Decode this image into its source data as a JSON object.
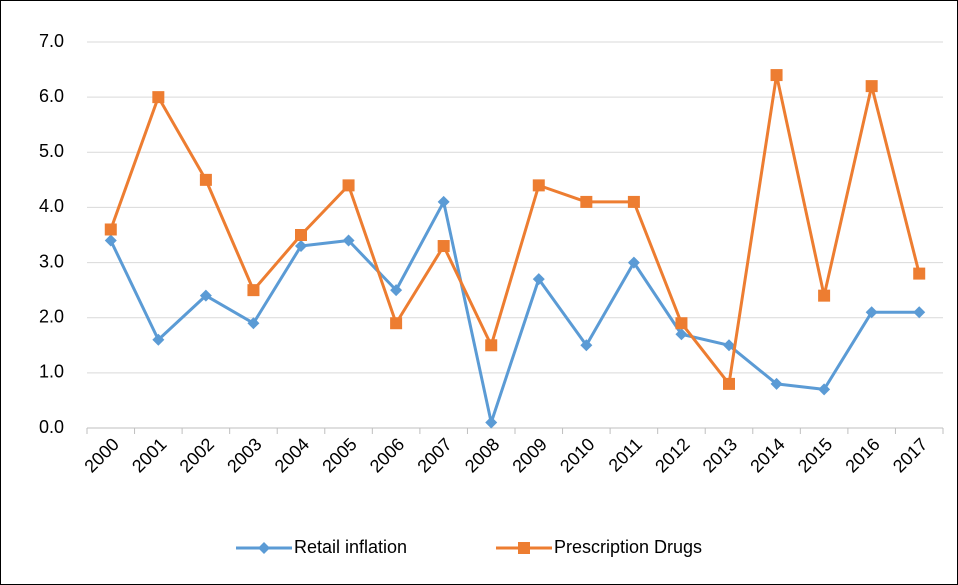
{
  "chart_data": {
    "type": "line",
    "categories": [
      "2000",
      "2001",
      "2002",
      "2003",
      "2004",
      "2005",
      "2006",
      "2007",
      "2008",
      "2009",
      "2010",
      "2011",
      "2012",
      "2013",
      "2014",
      "2015",
      "2016",
      "2017"
    ],
    "series": [
      {
        "name": "Retail inflation",
        "color": "#5b9bd5",
        "marker": "diamond",
        "values": [
          3.4,
          1.6,
          2.4,
          1.9,
          3.3,
          3.4,
          2.5,
          4.1,
          0.1,
          2.7,
          1.5,
          3.0,
          1.7,
          1.5,
          0.8,
          0.7,
          2.1,
          2.1
        ]
      },
      {
        "name": "Prescription Drugs",
        "color": "#ed7d31",
        "marker": "square",
        "values": [
          3.6,
          6.0,
          4.5,
          2.5,
          3.5,
          4.4,
          1.9,
          3.3,
          1.5,
          4.4,
          4.1,
          4.1,
          1.9,
          0.8,
          6.4,
          2.4,
          6.2,
          2.8
        ]
      }
    ],
    "ylim": [
      0,
      7
    ],
    "yticks": [
      {
        "value": 0,
        "label": "0.0"
      },
      {
        "value": 1,
        "label": "1.0"
      },
      {
        "value": 2,
        "label": "2.0"
      },
      {
        "value": 3,
        "label": "3.0"
      },
      {
        "value": 4,
        "label": "4.0"
      },
      {
        "value": 5,
        "label": "5.0"
      },
      {
        "value": 6,
        "label": "6.0"
      },
      {
        "value": 7,
        "label": "7.0"
      }
    ],
    "grid": true,
    "legend": "bottom"
  }
}
